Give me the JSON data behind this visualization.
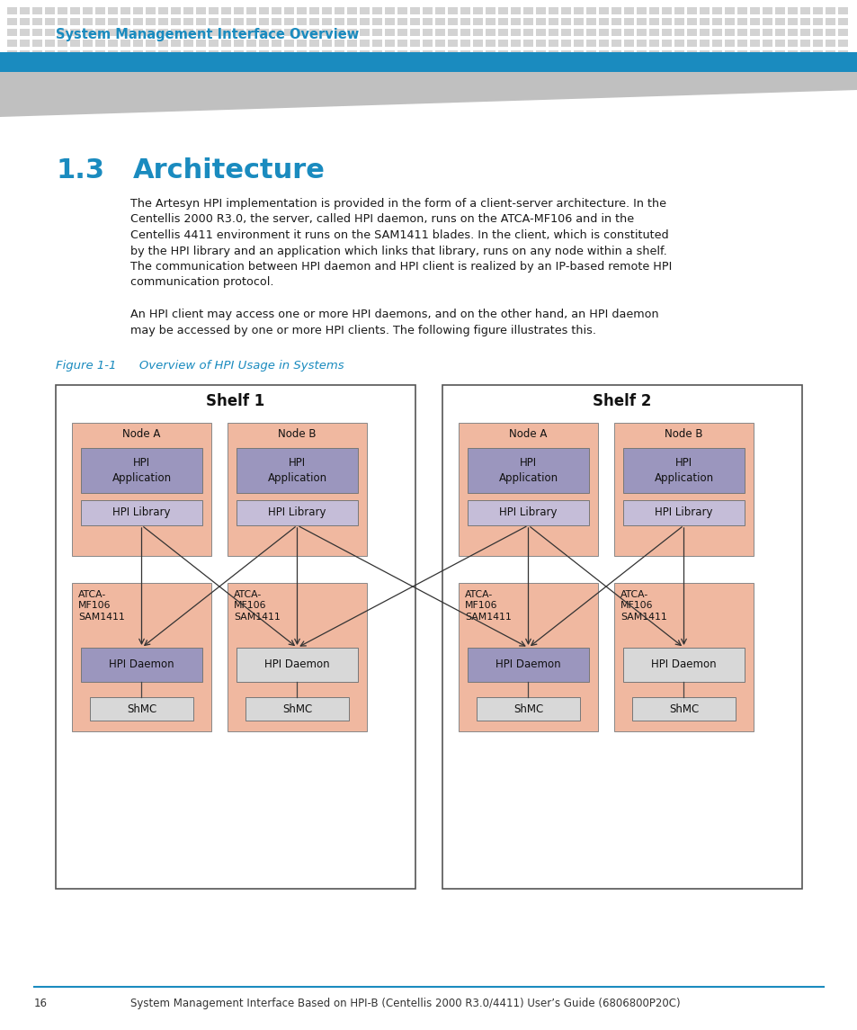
{
  "page_bg": "#ffffff",
  "header_dot_color": "#d3d3d3",
  "header_bar_color": "#1a8bbf",
  "header_text": "System Management Interface Overview",
  "header_text_color": "#1a8bbf",
  "section_number": "1.3",
  "section_title": "Architecture",
  "section_color": "#1a8bbf",
  "body_text_color": "#1a1a1a",
  "body_text_line1": "The Artesyn HPI implementation is provided in the form of a client-server architecture. In the",
  "body_text_line2": "Centellis 2000 R3.0, the server, called HPI daemon, runs on the ATCA-MF106 and in the",
  "body_text_line3": "Centellis 4411 environment it runs on the SAM1411 blades. In the client, which is constituted",
  "body_text_line4": "by the HPI library and an application which links that library, runs on any node within a shelf.",
  "body_text_line5": "The communication between HPI daemon and HPI client is realized by an IP-based remote HPI",
  "body_text_line6": "communication protocol.",
  "body_text2_line1": "An HPI client may access one or more HPI daemons, and on the other hand, an HPI daemon",
  "body_text2_line2": "may be accessed by one or more HPI clients. The following figure illustrates this.",
  "figure_caption": "Figure 1-1      Overview of HPI Usage in Systems",
  "figure_caption_color": "#1a8bbf",
  "footer_line_color": "#1a8bbf",
  "footer_page": "16",
  "footer_text": "System Management Interface Based on HPI-B (Centellis 2000 R3.0/4411) User’s Guide (6806800P20C)",
  "footer_text_color": "#333333",
  "shelf1_label": "Shelf 1",
  "shelf2_label": "Shelf 2",
  "nodeA_label": "Node A",
  "nodeB_label": "Node B",
  "hpi_app_label": "HPI\nApplication",
  "hpi_lib_label": "HPI Library",
  "atca_label": "ATCA-\nMF106\nSAM1411",
  "hpi_daemon_label": "HPI Daemon",
  "shmc_label": "ShMC",
  "color_salmon": "#f0b8a0",
  "color_lavender": "#9b96be",
  "color_light_lavender": "#c5bdd8",
  "color_white": "#ffffff",
  "color_light_gray": "#d8d8d8",
  "color_dark_lavender": "#7b70a8"
}
